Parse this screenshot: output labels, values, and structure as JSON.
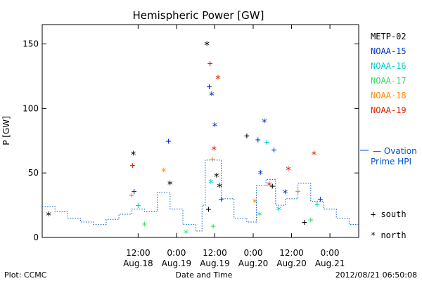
{
  "chart_data": {
    "type": "scatter",
    "title": "Hemispheric Power [GW]",
    "ylabel": "P [GW]",
    "xlabel": "Date and Time",
    "xlim": [
      "2012-08-17T06:00",
      "2012-08-21T09:00"
    ],
    "ylim": [
      0,
      165
    ],
    "yticks": [
      0,
      50,
      100,
      150
    ],
    "xticks": [
      {
        "time": "2012-08-18T12:00",
        "line1": "12:00",
        "line2": "Aug.18"
      },
      {
        "time": "2012-08-19T00:00",
        "line1": "0:00",
        "line2": "Aug.19"
      },
      {
        "time": "2012-08-19T12:00",
        "line1": "12:00",
        "line2": "Aug.19"
      },
      {
        "time": "2012-08-20T00:00",
        "line1": "0:00",
        "line2": "Aug.20"
      },
      {
        "time": "2012-08-20T12:00",
        "line1": "12:00",
        "line2": "Aug.20"
      },
      {
        "time": "2012-08-21T00:00",
        "line1": "0:00",
        "line2": "Aug.21"
      }
    ],
    "grid": false,
    "legend_position": "right",
    "series": [
      {
        "name": "METP-02",
        "color": "#000000",
        "points": [
          {
            "t": "2012-08-17T08:00",
            "v": 18,
            "m": "north"
          },
          {
            "t": "2012-08-18T10:30",
            "v": 65,
            "m": "north"
          },
          {
            "t": "2012-08-18T22:00",
            "v": 42,
            "m": "north"
          },
          {
            "t": "2012-08-19T09:30",
            "v": 150,
            "m": "north"
          },
          {
            "t": "2012-08-19T12:30",
            "v": 48,
            "m": "north"
          },
          {
            "t": "2012-08-19T13:30",
            "v": 40,
            "m": "north"
          },
          {
            "t": "2012-08-19T10:00",
            "v": 22,
            "m": "south"
          },
          {
            "t": "2012-08-19T22:00",
            "v": 79,
            "m": "south"
          },
          {
            "t": "2012-08-20T06:00",
            "v": 40,
            "m": "south"
          },
          {
            "t": "2012-08-20T16:00",
            "v": 12,
            "m": "south"
          }
        ]
      },
      {
        "name": "NOAA-15",
        "color": "#0033cc",
        "points": [
          {
            "t": "2012-08-18T10:45",
            "v": 36,
            "m": "south"
          },
          {
            "t": "2012-08-18T21:30",
            "v": 75,
            "m": "south"
          },
          {
            "t": "2012-08-19T10:15",
            "v": 117,
            "m": "south"
          },
          {
            "t": "2012-08-19T11:00",
            "v": 111,
            "m": "north"
          },
          {
            "t": "2012-08-19T12:00",
            "v": 87,
            "m": "north"
          },
          {
            "t": "2012-08-19T14:00",
            "v": 30,
            "m": "south"
          },
          {
            "t": "2012-08-20T01:30",
            "v": 76,
            "m": "south"
          },
          {
            "t": "2012-08-20T02:15",
            "v": 50,
            "m": "north"
          },
          {
            "t": "2012-08-20T03:30",
            "v": 90,
            "m": "north"
          },
          {
            "t": "2012-08-20T06:30",
            "v": 68,
            "m": "south"
          },
          {
            "t": "2012-08-20T10:00",
            "v": 35,
            "m": "north"
          },
          {
            "t": "2012-08-20T21:00",
            "v": 30,
            "m": "south"
          }
        ]
      },
      {
        "name": "NOAA-16",
        "color": "#00cccc",
        "points": [
          {
            "t": "2012-08-18T12:00",
            "v": 25,
            "m": "south"
          },
          {
            "t": "2012-08-19T10:45",
            "v": 43,
            "m": "north"
          },
          {
            "t": "2012-08-20T04:15",
            "v": 74,
            "m": "south"
          },
          {
            "t": "2012-08-20T08:00",
            "v": 22,
            "m": "north"
          },
          {
            "t": "2012-08-20T20:00",
            "v": 26,
            "m": "south"
          }
        ]
      },
      {
        "name": "NOAA-17",
        "color": "#33dd66",
        "points": [
          {
            "t": "2012-08-18T14:00",
            "v": 10,
            "m": "north"
          },
          {
            "t": "2012-08-19T03:00",
            "v": 4,
            "m": "north"
          },
          {
            "t": "2012-08-19T11:30",
            "v": 9,
            "m": "south"
          },
          {
            "t": "2012-08-20T02:00",
            "v": 18,
            "m": "north"
          },
          {
            "t": "2012-08-20T18:00",
            "v": 14,
            "m": "south"
          }
        ]
      },
      {
        "name": "NOAA-18",
        "color": "#ff8800",
        "points": [
          {
            "t": "2012-08-18T10:00",
            "v": 33,
            "m": "south"
          },
          {
            "t": "2012-08-18T20:00",
            "v": 52,
            "m": "north"
          },
          {
            "t": "2012-08-19T11:15",
            "v": 61,
            "m": "south"
          },
          {
            "t": "2012-08-20T00:30",
            "v": 28,
            "m": "north"
          },
          {
            "t": "2012-08-20T14:00",
            "v": 36,
            "m": "south"
          }
        ]
      },
      {
        "name": "NOAA-19",
        "color": "#dd2200",
        "points": [
          {
            "t": "2012-08-18T10:15",
            "v": 56,
            "m": "south"
          },
          {
            "t": "2012-08-19T10:30",
            "v": 135,
            "m": "south"
          },
          {
            "t": "2012-08-19T11:45",
            "v": 69,
            "m": "north"
          },
          {
            "t": "2012-08-19T13:00",
            "v": 124,
            "m": "north"
          },
          {
            "t": "2012-08-20T05:00",
            "v": 41,
            "m": "north"
          },
          {
            "t": "2012-08-20T11:00",
            "v": 53,
            "m": "north"
          },
          {
            "t": "2012-08-20T19:00",
            "v": 65,
            "m": "north"
          }
        ]
      }
    ],
    "ovation": {
      "name": "Ovation Prime HPI",
      "color": "#0055cc",
      "values": [
        {
          "t": "2012-08-17T06:00",
          "v": 24
        },
        {
          "t": "2012-08-17T10:00",
          "v": 20
        },
        {
          "t": "2012-08-17T14:00",
          "v": 15
        },
        {
          "t": "2012-08-17T18:00",
          "v": 12
        },
        {
          "t": "2012-08-17T22:00",
          "v": 10
        },
        {
          "t": "2012-08-18T02:00",
          "v": 14
        },
        {
          "t": "2012-08-18T06:00",
          "v": 18
        },
        {
          "t": "2012-08-18T10:00",
          "v": 22
        },
        {
          "t": "2012-08-18T14:00",
          "v": 20
        },
        {
          "t": "2012-08-18T18:00",
          "v": 35
        },
        {
          "t": "2012-08-18T22:00",
          "v": 22
        },
        {
          "t": "2012-08-19T02:00",
          "v": 10
        },
        {
          "t": "2012-08-19T06:00",
          "v": 5
        },
        {
          "t": "2012-08-19T08:00",
          "v": 25
        },
        {
          "t": "2012-08-19T09:00",
          "v": 60
        },
        {
          "t": "2012-08-19T12:00",
          "v": 60
        },
        {
          "t": "2012-08-19T14:00",
          "v": 30
        },
        {
          "t": "2012-08-19T18:00",
          "v": 15
        },
        {
          "t": "2012-08-19T22:00",
          "v": 12
        },
        {
          "t": "2012-08-20T01:00",
          "v": 40
        },
        {
          "t": "2012-08-20T04:00",
          "v": 45
        },
        {
          "t": "2012-08-20T07:00",
          "v": 25
        },
        {
          "t": "2012-08-20T10:00",
          "v": 30
        },
        {
          "t": "2012-08-20T14:00",
          "v": 42
        },
        {
          "t": "2012-08-20T18:00",
          "v": 28
        },
        {
          "t": "2012-08-20T22:00",
          "v": 22
        },
        {
          "t": "2012-08-21T02:00",
          "v": 15
        },
        {
          "t": "2012-08-21T06:00",
          "v": 10
        }
      ]
    },
    "symbol_legend": [
      {
        "symbol": "+",
        "label": "south"
      },
      {
        "symbol": "*",
        "label": "north"
      }
    ]
  },
  "footer": {
    "left": "Plot: CCMC",
    "center": "Date and Time",
    "right": "2012/08/21 06:50:08"
  },
  "ovation_legend": {
    "line1": "— Ovation",
    "line2": "Prime HPI"
  }
}
